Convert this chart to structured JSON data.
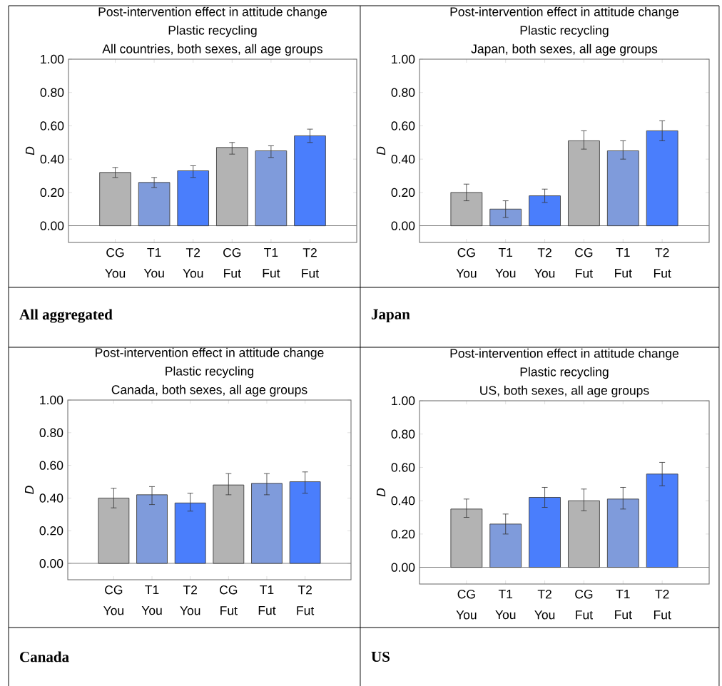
{
  "chart_data": [
    {
      "type": "bar",
      "title": "Post-intervention effect in attitude change",
      "subtitle": "Plastic recycling",
      "ylabel": "D",
      "annotations": [
        "All countries, both sexes, all age groups",
        "All aggregated"
      ],
      "categories": [
        "CG You",
        "T1 You",
        "T2 You",
        "CG Fut",
        "T1 Fut",
        "T2 Fut"
      ],
      "values": [
        0.32,
        0.26,
        0.33,
        0.47,
        0.45,
        0.54
      ],
      "errors": [
        [
          0.29,
          0.35
        ],
        [
          0.23,
          0.29
        ],
        [
          0.29,
          0.36
        ],
        [
          0.43,
          0.5
        ],
        [
          0.41,
          0.48
        ],
        [
          0.5,
          0.58
        ]
      ],
      "colors": [
        "#b3b3b3",
        "#7f9bdb",
        "#4a7efc",
        "#b3b3b3",
        "#7f9bdb",
        "#4a7efc"
      ],
      "ylim": [
        -0.1,
        1.0
      ],
      "yticks": [
        {
          "value": 0,
          "label": "0.00"
        },
        {
          "value": 0.2,
          "label": "0.20"
        },
        {
          "value": 0.4,
          "label": "0.40"
        },
        {
          "value": 0.6,
          "label": "0.60"
        },
        {
          "value": 0.8,
          "label": "0.80"
        },
        {
          "value": 1.0,
          "label": "1.00"
        }
      ],
      "ref_lines": [
        {
          "axis": "y",
          "value": 0,
          "color": "#808080"
        }
      ]
    },
    {
      "type": "bar",
      "title": "Post-intervention effect in attitude change",
      "subtitle": "Plastic recycling",
      "ylabel": "D",
      "annotations": [
        "Japan, both sexes, all age groups",
        "Japan"
      ],
      "categories": [
        "CG You",
        "T1 You",
        "T2 You",
        "CG Fut",
        "T1 Fut",
        "T2 Fut"
      ],
      "values": [
        0.2,
        0.1,
        0.18,
        0.51,
        0.45,
        0.57
      ],
      "errors": [
        [
          0.15,
          0.25
        ],
        [
          0.05,
          0.15
        ],
        [
          0.14,
          0.22
        ],
        [
          0.46,
          0.57
        ],
        [
          0.4,
          0.51
        ],
        [
          0.51,
          0.63
        ]
      ],
      "colors": [
        "#b3b3b3",
        "#7f9bdb",
        "#4a7efc",
        "#b3b3b3",
        "#7f9bdb",
        "#4a7efc"
      ],
      "ylim": [
        -0.1,
        1.0
      ],
      "yticks": [
        {
          "value": 0,
          "label": "0.00"
        },
        {
          "value": 0.2,
          "label": "0.20"
        },
        {
          "value": 0.4,
          "label": "0.40"
        },
        {
          "value": 0.6,
          "label": "0.60"
        },
        {
          "value": 0.8,
          "label": "0.80"
        },
        {
          "value": 1.0,
          "label": "1.00"
        }
      ],
      "ref_lines": [
        {
          "axis": "y",
          "value": 0,
          "color": "#808080"
        }
      ]
    },
    {
      "type": "bar",
      "title": "Post-intervention effect in attitude change",
      "subtitle": "Plastic recycling",
      "ylabel": "D",
      "annotations": [
        "Canada, both sexes, all age groups",
        "Canada"
      ],
      "categories": [
        "CG You",
        "T1 You",
        "T2 You",
        "CG Fut",
        "T1 Fut",
        "T2 Fut"
      ],
      "values": [
        0.4,
        0.42,
        0.37,
        0.48,
        0.49,
        0.5
      ],
      "errors": [
        [
          0.34,
          0.46
        ],
        [
          0.36,
          0.47
        ],
        [
          0.32,
          0.43
        ],
        [
          0.42,
          0.55
        ],
        [
          0.42,
          0.55
        ],
        [
          0.43,
          0.56
        ]
      ],
      "colors": [
        "#b3b3b3",
        "#7f9bdb",
        "#4a7efc",
        "#b3b3b3",
        "#7f9bdb",
        "#4a7efc"
      ],
      "ylim": [
        -0.1,
        1.0
      ],
      "yticks": [
        {
          "value": 0,
          "label": "0.00"
        },
        {
          "value": 0.2,
          "label": "0.20"
        },
        {
          "value": 0.4,
          "label": "0.40"
        },
        {
          "value": 0.6,
          "label": "0.60"
        },
        {
          "value": 0.8,
          "label": "0.80"
        },
        {
          "value": 1.0,
          "label": "1.00"
        }
      ],
      "ref_lines": [
        {
          "axis": "y",
          "value": 0,
          "color": "#808080"
        }
      ]
    },
    {
      "type": "bar",
      "title": "Post-intervention effect in attitude change",
      "subtitle": "Plastic recycling",
      "ylabel": "D",
      "annotations": [
        "US, both sexes, all age groups",
        "US"
      ],
      "categories": [
        "CG You",
        "T1 You",
        "T2 You",
        "CG Fut",
        "T1 Fut",
        "T2 Fut"
      ],
      "values": [
        0.35,
        0.26,
        0.42,
        0.4,
        0.41,
        0.56
      ],
      "errors": [
        [
          0.3,
          0.41
        ],
        [
          0.2,
          0.32
        ],
        [
          0.36,
          0.48
        ],
        [
          0.34,
          0.47
        ],
        [
          0.35,
          0.48
        ],
        [
          0.49,
          0.63
        ]
      ],
      "colors": [
        "#b3b3b3",
        "#7f9bdb",
        "#4a7efc",
        "#b3b3b3",
        "#7f9bdb",
        "#4a7efc"
      ],
      "ylim": [
        -0.1,
        1.0
      ],
      "yticks": [
        {
          "value": 0,
          "label": "0.00"
        },
        {
          "value": 0.2,
          "label": "0.20"
        },
        {
          "value": 0.4,
          "label": "0.40"
        },
        {
          "value": 0.6,
          "label": "0.60"
        },
        {
          "value": 0.8,
          "label": "0.80"
        },
        {
          "value": 1.0,
          "label": "1.00"
        }
      ],
      "ref_lines": [
        {
          "axis": "y",
          "value": 0,
          "color": "#808080"
        }
      ]
    }
  ]
}
